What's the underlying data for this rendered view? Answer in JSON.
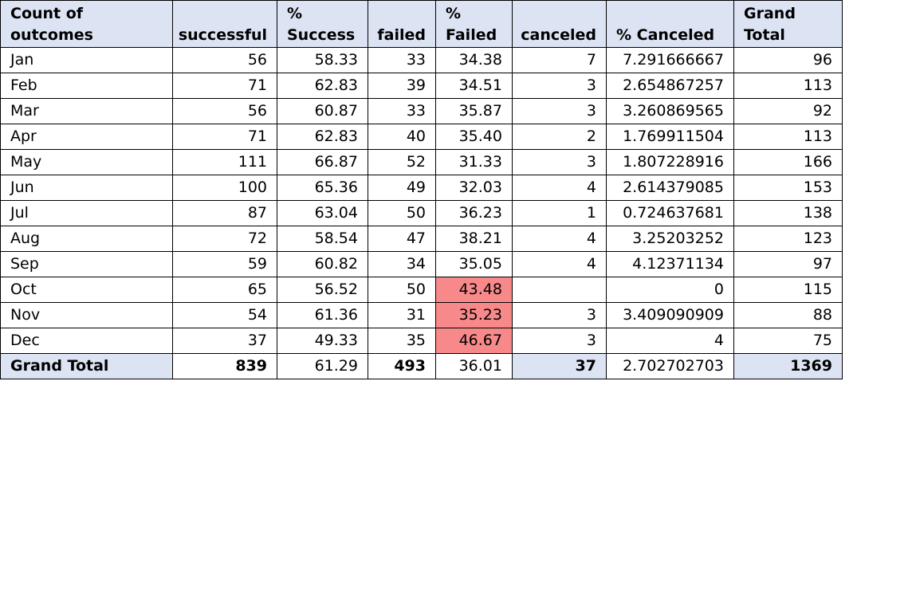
{
  "headers": {
    "label": "Count of outcomes",
    "successful": "successful",
    "pct_success": "% Success",
    "failed": "failed",
    "pct_failed": "% Failed",
    "canceled": "canceled",
    "pct_canceled": "% Canceled",
    "grand_total": "Grand Total"
  },
  "rows": [
    {
      "month": "Jan",
      "successful": "56",
      "pct_success": "58.33",
      "failed": "33",
      "pct_failed": "34.38",
      "canceled": "7",
      "pct_canceled": "7.291666667",
      "grand_total": "96"
    },
    {
      "month": "Feb",
      "successful": "71",
      "pct_success": "62.83",
      "failed": "39",
      "pct_failed": "34.51",
      "canceled": "3",
      "pct_canceled": "2.654867257",
      "grand_total": "113"
    },
    {
      "month": "Mar",
      "successful": "56",
      "pct_success": "60.87",
      "failed": "33",
      "pct_failed": "35.87",
      "canceled": "3",
      "pct_canceled": "3.260869565",
      "grand_total": "92"
    },
    {
      "month": "Apr",
      "successful": "71",
      "pct_success": "62.83",
      "failed": "40",
      "pct_failed": "35.40",
      "canceled": "2",
      "pct_canceled": "1.769911504",
      "grand_total": "113"
    },
    {
      "month": "May",
      "successful": "111",
      "pct_success": "66.87",
      "failed": "52",
      "pct_failed": "31.33",
      "canceled": "3",
      "pct_canceled": "1.807228916",
      "grand_total": "166"
    },
    {
      "month": "Jun",
      "successful": "100",
      "pct_success": "65.36",
      "failed": "49",
      "pct_failed": "32.03",
      "canceled": "4",
      "pct_canceled": "2.614379085",
      "grand_total": "153"
    },
    {
      "month": "Jul",
      "successful": "87",
      "pct_success": "63.04",
      "failed": "50",
      "pct_failed": "36.23",
      "canceled": "1",
      "pct_canceled": "0.724637681",
      "grand_total": "138"
    },
    {
      "month": "Aug",
      "successful": "72",
      "pct_success": "58.54",
      "failed": "47",
      "pct_failed": "38.21",
      "canceled": "4",
      "pct_canceled": "3.25203252",
      "grand_total": "123"
    },
    {
      "month": "Sep",
      "successful": "59",
      "pct_success": "60.82",
      "failed": "34",
      "pct_failed": "35.05",
      "canceled": "4",
      "pct_canceled": "4.12371134",
      "grand_total": "97"
    },
    {
      "month": "Oct",
      "successful": "65",
      "pct_success": "56.52",
      "failed": "50",
      "pct_failed": "43.48",
      "canceled": "",
      "pct_canceled": "0",
      "grand_total": "115"
    },
    {
      "month": "Nov",
      "successful": "54",
      "pct_success": "61.36",
      "failed": "31",
      "pct_failed": "35.23",
      "canceled": "3",
      "pct_canceled": "3.409090909",
      "grand_total": "88"
    },
    {
      "month": "Dec",
      "successful": "37",
      "pct_success": "49.33",
      "failed": "35",
      "pct_failed": "46.67",
      "canceled": "3",
      "pct_canceled": "4",
      "grand_total": "75"
    }
  ],
  "total": {
    "label": "Grand Total",
    "successful": "839",
    "pct_success": "61.29",
    "failed": "493",
    "pct_failed": "36.01",
    "canceled": "37",
    "pct_canceled": "2.702702703",
    "grand_total": "1369"
  },
  "colors": {
    "header_fill": "#dce3f3",
    "highlight_fill": "#f8898a"
  }
}
